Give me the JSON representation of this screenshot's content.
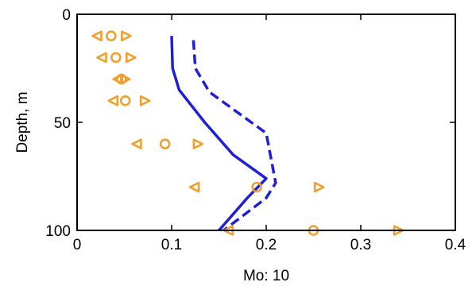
{
  "chart_data": {
    "type": "scatter",
    "xlabel": "Mo: 10",
    "ylabel": "Depth, m",
    "xlim": [
      0,
      0.4
    ],
    "ylim": [
      100,
      0
    ],
    "x_ticks": [
      "0",
      "0.1",
      "0.2",
      "0.3",
      "0.4"
    ],
    "y_ticks": [
      "0",
      "50",
      "100"
    ],
    "grid": false,
    "series": [
      {
        "kind": "line",
        "style": "solid",
        "color": "#1f1fd6",
        "points": [
          [
            0.1,
            10
          ],
          [
            0.101,
            25
          ],
          [
            0.108,
            35
          ],
          [
            0.135,
            50
          ],
          [
            0.165,
            65
          ],
          [
            0.2,
            76
          ],
          [
            0.18,
            85
          ],
          [
            0.16,
            95
          ],
          [
            0.15,
            100
          ]
        ]
      },
      {
        "kind": "line",
        "style": "dashed",
        "color": "#1f1fd6",
        "points": [
          [
            0.123,
            12
          ],
          [
            0.125,
            25
          ],
          [
            0.14,
            36
          ],
          [
            0.2,
            55
          ],
          [
            0.21,
            78
          ],
          [
            0.2,
            85
          ],
          [
            0.17,
            95
          ],
          [
            0.155,
            100
          ]
        ]
      },
      {
        "kind": "markers",
        "marker": "triangle-left",
        "color": "#f0a030",
        "points": [
          [
            0.021,
            10
          ],
          [
            0.026,
            20
          ],
          [
            0.043,
            30
          ],
          [
            0.038,
            40
          ],
          [
            0.063,
            60
          ],
          [
            0.124,
            80
          ],
          [
            0.16,
            100
          ]
        ]
      },
      {
        "kind": "markers",
        "marker": "circle",
        "color": "#f0a030",
        "points": [
          [
            0.036,
            10
          ],
          [
            0.041,
            20
          ],
          [
            0.047,
            30
          ],
          [
            0.051,
            40
          ],
          [
            0.093,
            60
          ],
          [
            0.19,
            80
          ],
          [
            0.25,
            100
          ]
        ]
      },
      {
        "kind": "markers",
        "marker": "triangle-right",
        "color": "#f0a030",
        "points": [
          [
            0.052,
            10
          ],
          [
            0.057,
            20
          ],
          [
            0.051,
            30
          ],
          [
            0.072,
            40
          ],
          [
            0.128,
            60
          ],
          [
            0.256,
            80
          ],
          [
            0.34,
            100
          ]
        ]
      }
    ]
  }
}
